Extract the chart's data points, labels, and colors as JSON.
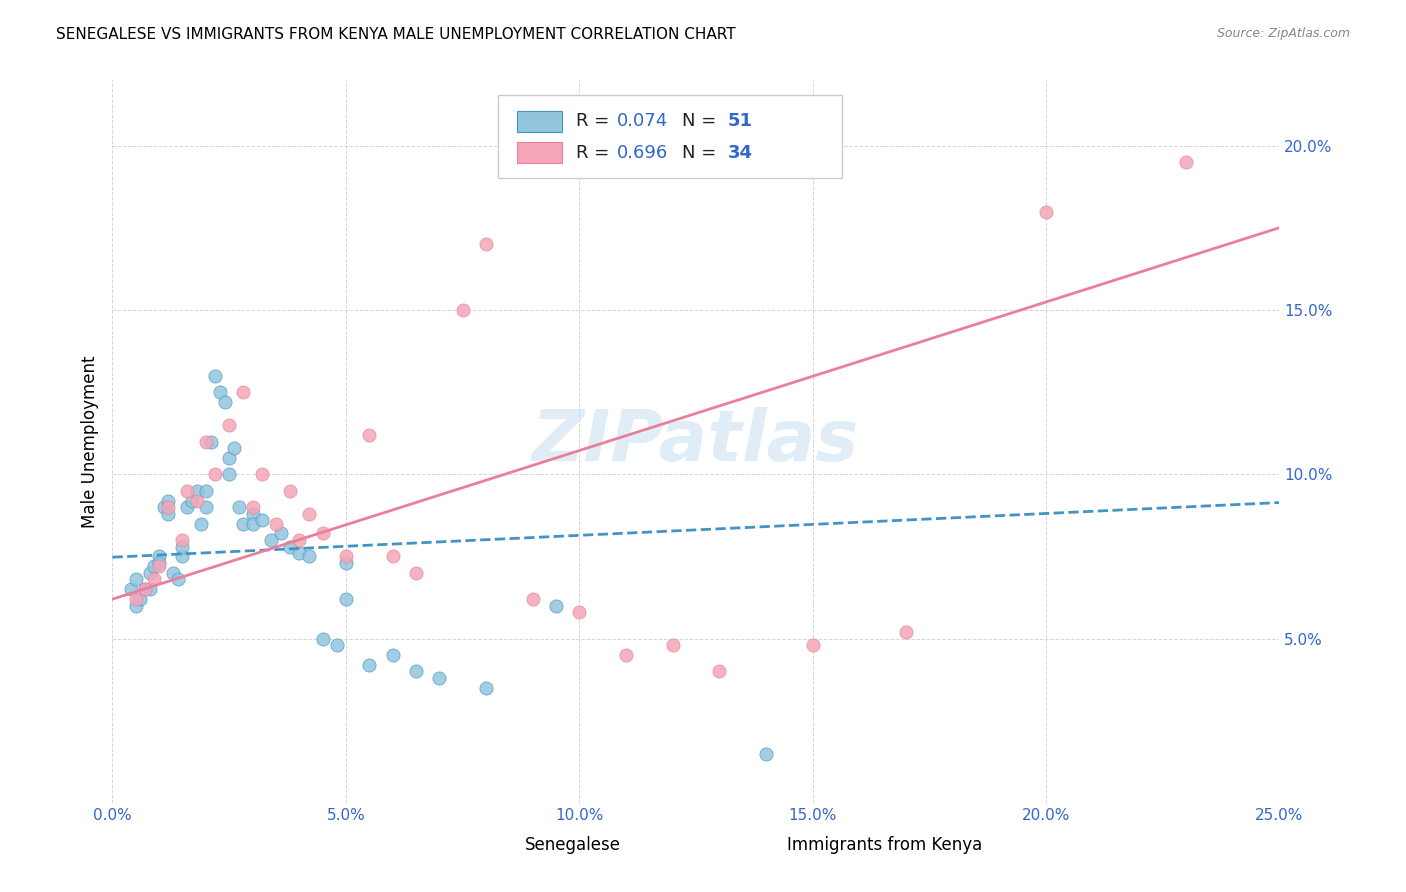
{
  "title": "SENEGALESE VS IMMIGRANTS FROM KENYA MALE UNEMPLOYMENT CORRELATION CHART",
  "source": "Source: ZipAtlas.com",
  "ylabel": "Male Unemployment",
  "xlim": [
    0.0,
    0.25
  ],
  "ylim": [
    0.0,
    0.22
  ],
  "xticks": [
    0.0,
    0.05,
    0.1,
    0.15,
    0.2,
    0.25
  ],
  "yticks": [
    0.05,
    0.1,
    0.15,
    0.2
  ],
  "ytick_labels": [
    "5.0%",
    "10.0%",
    "15.0%",
    "20.0%"
  ],
  "xtick_labels": [
    "0.0%",
    "5.0%",
    "10.0%",
    "15.0%",
    "20.0%",
    "25.0%"
  ],
  "legend_labels": [
    "Senegalese",
    "Immigrants from Kenya"
  ],
  "r_blue": 0.074,
  "n_blue": 51,
  "r_pink": 0.696,
  "n_pink": 34,
  "blue_color": "#92C5DE",
  "pink_color": "#F4A6B8",
  "blue_line_color": "#4393C3",
  "pink_line_color": "#E8809A",
  "watermark": "ZIPatlas",
  "blue_scatter_x": [
    0.004,
    0.005,
    0.005,
    0.006,
    0.007,
    0.008,
    0.008,
    0.009,
    0.01,
    0.01,
    0.011,
    0.012,
    0.012,
    0.013,
    0.014,
    0.015,
    0.015,
    0.016,
    0.017,
    0.018,
    0.019,
    0.02,
    0.02,
    0.021,
    0.022,
    0.023,
    0.024,
    0.025,
    0.025,
    0.026,
    0.027,
    0.028,
    0.03,
    0.03,
    0.032,
    0.034,
    0.036,
    0.038,
    0.04,
    0.042,
    0.045,
    0.048,
    0.05,
    0.055,
    0.06,
    0.065,
    0.07,
    0.08,
    0.095,
    0.14,
    0.05
  ],
  "blue_scatter_y": [
    0.065,
    0.06,
    0.068,
    0.062,
    0.065,
    0.07,
    0.065,
    0.072,
    0.075,
    0.073,
    0.09,
    0.092,
    0.088,
    0.07,
    0.068,
    0.075,
    0.078,
    0.09,
    0.092,
    0.095,
    0.085,
    0.09,
    0.095,
    0.11,
    0.13,
    0.125,
    0.122,
    0.1,
    0.105,
    0.108,
    0.09,
    0.085,
    0.088,
    0.085,
    0.086,
    0.08,
    0.082,
    0.078,
    0.076,
    0.075,
    0.05,
    0.048,
    0.073,
    0.042,
    0.045,
    0.04,
    0.038,
    0.035,
    0.06,
    0.015,
    0.062
  ],
  "pink_scatter_x": [
    0.005,
    0.007,
    0.009,
    0.01,
    0.012,
    0.015,
    0.016,
    0.018,
    0.02,
    0.022,
    0.025,
    0.028,
    0.03,
    0.032,
    0.035,
    0.038,
    0.04,
    0.042,
    0.045,
    0.05,
    0.055,
    0.06,
    0.065,
    0.075,
    0.08,
    0.09,
    0.1,
    0.11,
    0.12,
    0.13,
    0.15,
    0.17,
    0.2,
    0.23
  ],
  "pink_scatter_y": [
    0.062,
    0.065,
    0.068,
    0.072,
    0.09,
    0.08,
    0.095,
    0.092,
    0.11,
    0.1,
    0.115,
    0.125,
    0.09,
    0.1,
    0.085,
    0.095,
    0.08,
    0.088,
    0.082,
    0.075,
    0.112,
    0.075,
    0.07,
    0.15,
    0.17,
    0.062,
    0.058,
    0.045,
    0.048,
    0.04,
    0.048,
    0.052,
    0.18,
    0.195
  ]
}
